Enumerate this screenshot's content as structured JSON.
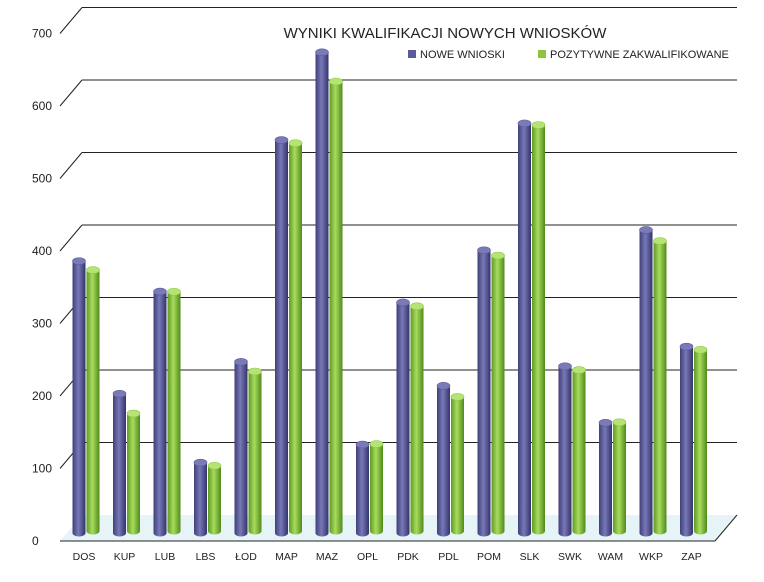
{
  "chart_data": {
    "type": "bar",
    "title": "WYNIKI KWALIFIKACJI NOWYCH WNIOSKÓW",
    "xlabel": "",
    "ylabel": "",
    "ylim": [
      0,
      700
    ],
    "yticks": [
      0,
      100,
      200,
      300,
      400,
      500,
      600,
      700
    ],
    "grid": true,
    "legend": "top-right",
    "categories": [
      "DOS",
      "KUP",
      "LUB",
      "LBS",
      "ŁOD",
      "MAP",
      "MAZ",
      "OPL",
      "PDK",
      "PDL",
      "POM",
      "SLK",
      "SWK",
      "WAM",
      "WKP",
      "ZAP"
    ],
    "series": [
      {
        "name": "NOWE WNIOSKI",
        "color": "#5b5b9b",
        "values": [
          375,
          192,
          333,
          97,
          236,
          542,
          663,
          122,
          318,
          203,
          390,
          565,
          230,
          152,
          418,
          257
        ]
      },
      {
        "name": "POZYTYWNE ZAKWALIFIKOWANE",
        "color": "#8cc63f",
        "values": [
          360,
          162,
          330,
          90,
          220,
          535,
          620,
          120,
          310,
          185,
          380,
          560,
          222,
          150,
          400,
          250
        ]
      }
    ]
  }
}
